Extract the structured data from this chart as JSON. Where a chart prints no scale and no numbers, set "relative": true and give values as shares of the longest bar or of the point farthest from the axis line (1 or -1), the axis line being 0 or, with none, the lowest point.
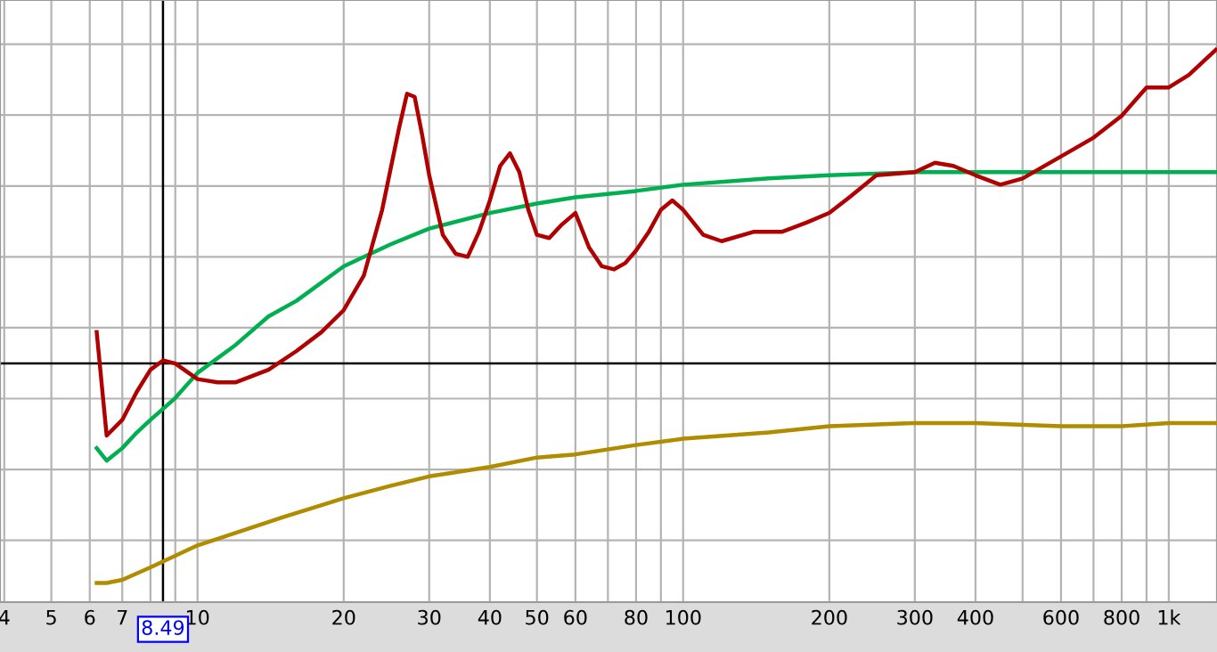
{
  "chart_data": {
    "type": "line",
    "relative": true,
    "log": "x",
    "grid": "xy",
    "tick_labels": "x",
    "xlim": [
      3.92,
      1257
    ],
    "xticks": [
      4,
      5,
      6,
      7,
      {
        "value": 8,
        "label": null
      },
      {
        "value": 9,
        "label": null
      },
      10,
      20,
      30,
      40,
      50,
      60,
      {
        "value": 70,
        "label": null
      },
      80,
      {
        "value": 90,
        "label": null
      },
      100,
      200,
      300,
      400,
      {
        "value": 500,
        "label": null
      },
      600,
      {
        "value": 700,
        "label": null
      },
      800,
      {
        "value": 900,
        "label": null
      },
      {
        "value": 1000,
        "label": "1k"
      }
    ],
    "ref_lines": [
      {
        "axis": "x",
        "value": 8.49,
        "label": "8.49",
        "color": "#000000"
      }
    ],
    "series": [
      {
        "color": "#00b050",
        "x": [
          6.2,
          6.5,
          7,
          7.5,
          8,
          9,
          10,
          12,
          14,
          16,
          20,
          25,
          30,
          40,
          50,
          60,
          80,
          100,
          150,
          200,
          300,
          400,
          600,
          800,
          1000,
          1250
        ],
        "values": [
          -0.27,
          -0.31,
          -0.27,
          -0.22,
          -0.18,
          -0.11,
          -0.03,
          0.06,
          0.15,
          0.2,
          0.31,
          0.38,
          0.43,
          0.48,
          0.51,
          0.53,
          0.55,
          0.57,
          0.59,
          0.6,
          0.61,
          0.61,
          0.61,
          0.61,
          0.61,
          0.61
        ]
      },
      {
        "color": "#b08c00",
        "x": [
          6.2,
          6.5,
          7,
          8,
          10,
          12,
          15,
          20,
          25,
          30,
          40,
          50,
          60,
          80,
          100,
          150,
          200,
          300,
          400,
          600,
          800,
          1000,
          1250
        ],
        "values": [
          -0.7,
          -0.7,
          -0.69,
          -0.65,
          -0.58,
          -0.54,
          -0.49,
          -0.43,
          -0.39,
          -0.36,
          -0.33,
          -0.3,
          -0.29,
          -0.26,
          -0.24,
          -0.22,
          -0.2,
          -0.19,
          -0.19,
          -0.2,
          -0.2,
          -0.19,
          -0.19
        ]
      },
      {
        "color": "#b00000",
        "x": [
          6.2,
          6.5,
          7,
          7.5,
          8,
          8.5,
          9,
          10,
          11,
          12,
          14,
          16,
          18,
          20,
          22,
          24,
          26,
          27,
          28,
          29,
          30,
          32,
          34,
          36,
          38,
          40,
          42,
          44,
          46,
          48,
          50,
          53,
          56,
          60,
          64,
          68,
          72,
          76,
          80,
          85,
          90,
          95,
          100,
          110,
          120,
          140,
          160,
          180,
          200,
          220,
          250,
          300,
          330,
          360,
          400,
          450,
          500,
          600,
          700,
          800,
          900,
          1000,
          1100,
          1250
        ],
        "values": [
          0.1,
          -0.23,
          -0.18,
          -0.09,
          -0.02,
          0.01,
          0.0,
          -0.05,
          -0.06,
          -0.06,
          -0.02,
          0.04,
          0.1,
          0.17,
          0.28,
          0.49,
          0.75,
          0.86,
          0.85,
          0.73,
          0.6,
          0.41,
          0.35,
          0.34,
          0.42,
          0.52,
          0.63,
          0.67,
          0.61,
          0.49,
          0.41,
          0.4,
          0.44,
          0.48,
          0.37,
          0.31,
          0.3,
          0.32,
          0.36,
          0.42,
          0.49,
          0.52,
          0.49,
          0.41,
          0.39,
          0.42,
          0.42,
          0.45,
          0.48,
          0.53,
          0.6,
          0.61,
          0.64,
          0.63,
          0.6,
          0.57,
          0.59,
          0.66,
          0.72,
          0.79,
          0.88,
          0.88,
          0.92,
          1.0
        ]
      }
    ]
  }
}
